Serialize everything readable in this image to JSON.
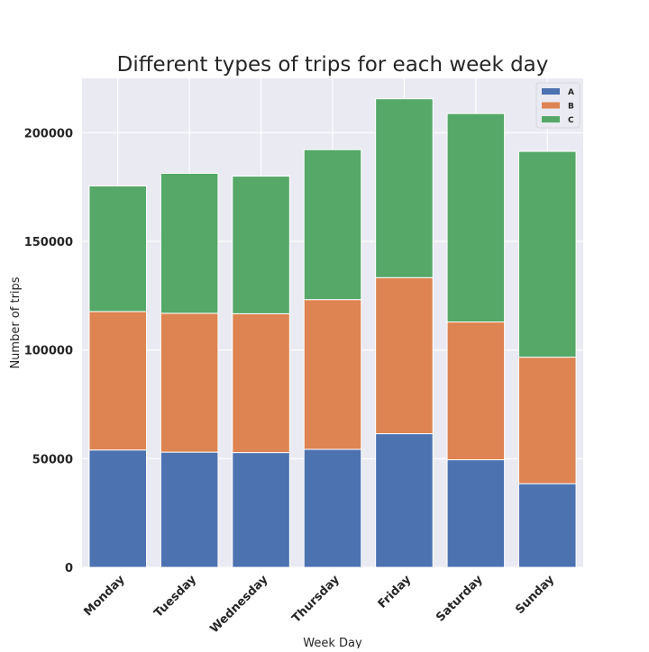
{
  "chart_data": {
    "type": "bar",
    "stacked": true,
    "title": "Different types of trips for each week day",
    "xlabel": "Week Day",
    "ylabel": "Number of trips",
    "categories": [
      "Monday",
      "Tuesday",
      "Wednesday",
      "Thursday",
      "Friday",
      "Saturday",
      "Sunday"
    ],
    "series": [
      {
        "name": "A",
        "color": "#4c72b0",
        "values": [
          54000,
          53000,
          52800,
          54300,
          61500,
          49500,
          38500
        ]
      },
      {
        "name": "B",
        "color": "#dd8452",
        "values": [
          63700,
          63900,
          63900,
          68900,
          71800,
          63400,
          58200
        ]
      },
      {
        "name": "C",
        "color": "#55a868",
        "values": [
          57800,
          64400,
          63300,
          69000,
          82300,
          95900,
          94700
        ]
      }
    ],
    "ylim": [
      0,
      225000
    ],
    "yticks": [
      0,
      50000,
      100000,
      150000,
      200000
    ],
    "ytick_labels": [
      "0",
      "50000",
      "100000",
      "150000",
      "200000"
    ],
    "grid": true,
    "legend_position": "top-right",
    "background_color": "#eaeaf2"
  }
}
